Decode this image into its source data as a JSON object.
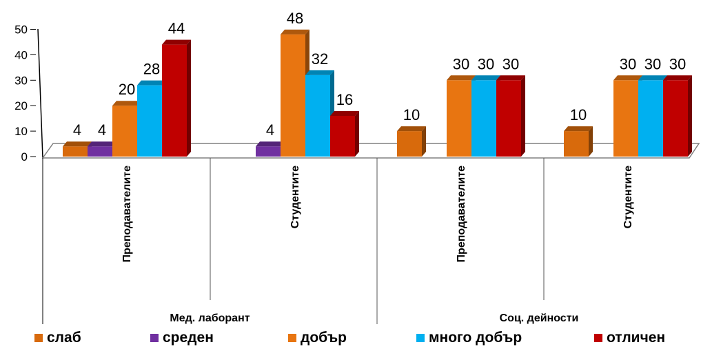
{
  "chart_data": {
    "type": "bar",
    "ylim": [
      0,
      50
    ],
    "yticks": [
      "0",
      "10",
      "20",
      "30",
      "40",
      "50"
    ],
    "groups": [
      {
        "label": "Мед. лаборант",
        "subgroups": [
          {
            "label": "Преподавателите",
            "values": [
              4,
              4,
              20,
              28,
              44
            ]
          },
          {
            "label": "Студентите",
            "values": [
              null,
              4,
              48,
              32,
              16
            ]
          }
        ]
      },
      {
        "label": "Соц. дейности",
        "subgroups": [
          {
            "label": "Преподавателите",
            "values": [
              10,
              null,
              30,
              30,
              30
            ]
          },
          {
            "label": "Студентите",
            "values": [
              10,
              null,
              30,
              30,
              30
            ]
          }
        ]
      }
    ],
    "series": [
      {
        "name": "слаб",
        "color": "#D86A0C"
      },
      {
        "name": "среден",
        "color": "#7030A0"
      },
      {
        "name": "добър",
        "color": "#E87511"
      },
      {
        "name": "много добър",
        "color": "#00B0F0"
      },
      {
        "name": "отличен",
        "color": "#C00000"
      }
    ],
    "legend_position": "bottom",
    "grid": false,
    "three_d": true
  }
}
